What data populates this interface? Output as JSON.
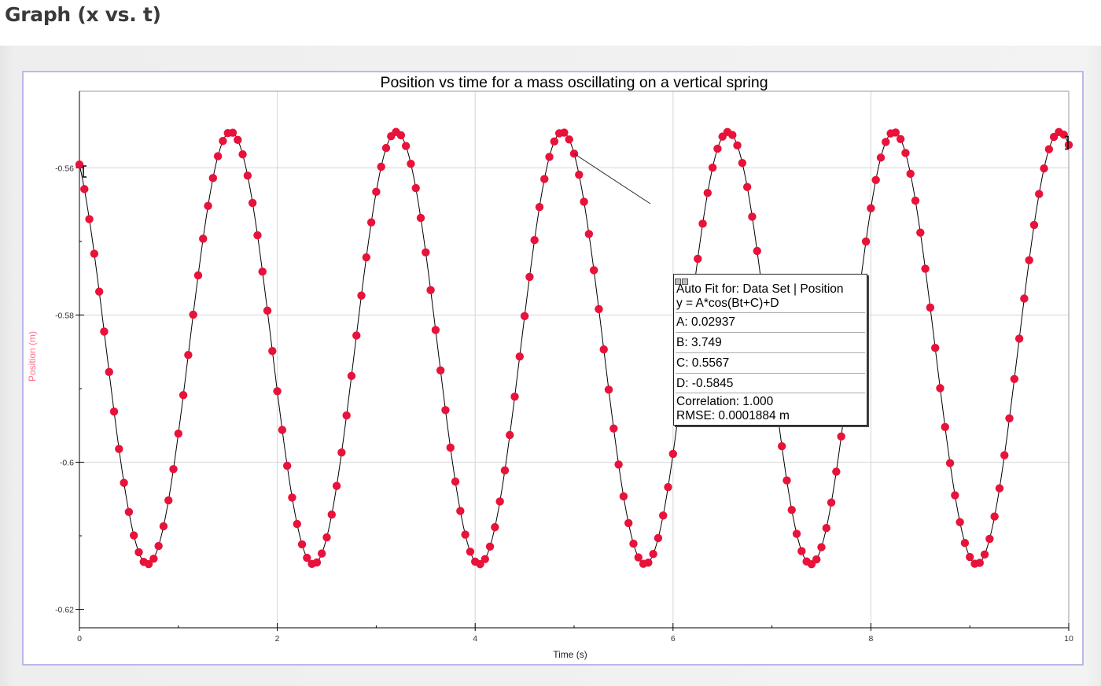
{
  "page": {
    "heading": "Graph (x vs. t)"
  },
  "colors": {
    "points": "#e8123a",
    "fit_line": "#000000",
    "grid": "#d6d6d6",
    "ylabel": "#ff6f8a",
    "frame_border": "#b9b9e8"
  },
  "chart_data": {
    "type": "scatter",
    "title": "Position vs time for a mass oscillating on a vertical spring",
    "xlabel": "Time (s)",
    "ylabel": "Position (m)",
    "xlim": [
      0,
      10
    ],
    "ylim": [
      -0.62,
      -0.55
    ],
    "x_ticks": [
      "0",
      "2",
      "4",
      "6",
      "8",
      "10"
    ],
    "y_ticks": [
      "-0.56",
      "-0.58",
      "-0.6",
      "-0.62"
    ],
    "grid": true,
    "series": [
      {
        "name": "Position",
        "x_start": 0,
        "x_end": 10,
        "x_step": 0.05,
        "model": "A*cos(B*t+C)+D"
      }
    ],
    "fit": {
      "A": 0.02937,
      "B": 3.749,
      "C": 0.5567,
      "D": -0.5845
    }
  },
  "fit_box": {
    "lines": [
      "Auto Fit for: Data Set | Position",
      "y = A*cos(Bt+C)+D",
      "A: 0.02937",
      "B: 3.749",
      "C: 0.5567",
      "D: -0.5845",
      "Correlation: 1.000",
      "RMSE: 0.0001884 m"
    ]
  }
}
